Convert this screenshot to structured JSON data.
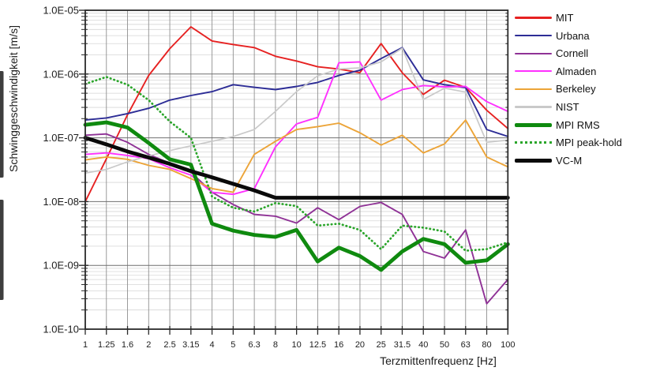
{
  "chart_data": {
    "type": "line",
    "title": "",
    "xlabel": "Terzmittenfrequenz [Hz]",
    "ylabel": "Schwinggeschwindigkeit [m/s]",
    "x_scale": "log-third-octave-bands",
    "y_scale": "log",
    "ylim": [
      1e-10,
      1e-05
    ],
    "grid": true,
    "legend_position": "right",
    "y_ticks": [
      "1.0E-05",
      "1.0E-06",
      "1.0E-07",
      "1.0E-08",
      "1.0E-09",
      "1.0E-10"
    ],
    "y_tick_values": [
      1e-05,
      1e-06,
      1e-07,
      1e-08,
      1e-09,
      1e-10
    ],
    "categories": [
      "1",
      "1.25",
      "1.6",
      "2",
      "2.5",
      "3.15",
      "4",
      "5",
      "6.3",
      "8",
      "10",
      "12.5",
      "16",
      "20",
      "25",
      "31.5",
      "40",
      "50",
      "63",
      "80",
      "100"
    ],
    "series": [
      {
        "name": "MIT",
        "color": "#e62121",
        "width": 1.9,
        "style": "solid",
        "values": [
          1e-08,
          4.7e-08,
          2.3e-07,
          9.5e-07,
          2.5e-06,
          5.5e-06,
          3.3e-06,
          2.9e-06,
          2.6e-06,
          1.9e-06,
          1.6e-06,
          1.3e-06,
          1.2e-06,
          1.05e-06,
          3e-06,
          1.05e-06,
          4.8e-07,
          8e-07,
          6.2e-07,
          2.7e-07,
          1.4e-07
        ]
      },
      {
        "name": "Urbana",
        "color": "#2d2d96",
        "width": 1.9,
        "style": "solid",
        "values": [
          1.9e-07,
          2.05e-07,
          2.4e-07,
          2.9e-07,
          3.9e-07,
          4.6e-07,
          5.3e-07,
          6.8e-07,
          6.2e-07,
          5.7e-07,
          6.4e-07,
          7.4e-07,
          9.5e-07,
          1.15e-06,
          1.75e-06,
          2.6e-06,
          8.1e-07,
          6.8e-07,
          6.1e-07,
          1.35e-07,
          1.05e-07
        ]
      },
      {
        "name": "Cornell",
        "color": "#8f3296",
        "width": 1.9,
        "style": "solid",
        "values": [
          1.1e-07,
          1.15e-07,
          8.5e-08,
          5.5e-08,
          4e-08,
          2.9e-08,
          1.4e-08,
          9e-09,
          6.3e-09,
          5.9e-09,
          4.6e-09,
          8e-09,
          5.2e-09,
          8.4e-09,
          9.7e-09,
          6.3e-09,
          1.65e-09,
          1.3e-09,
          3.6e-09,
          2.5e-10,
          6e-10
        ]
      },
      {
        "name": "Almaden",
        "color": "#ff30ff",
        "width": 1.9,
        "style": "solid",
        "values": [
          5.5e-08,
          5.8e-08,
          5.3e-08,
          4.7e-08,
          3.4e-08,
          2.6e-08,
          1.4e-08,
          1.3e-08,
          1.6e-08,
          7.2e-08,
          1.65e-07,
          2.1e-07,
          1.5e-06,
          1.55e-06,
          3.9e-07,
          5.7e-07,
          6.6e-07,
          6.3e-07,
          6.4e-07,
          3.7e-07,
          2.6e-07
        ]
      },
      {
        "name": "Berkeley",
        "color": "#eca438",
        "width": 1.9,
        "style": "solid",
        "values": [
          4.5e-08,
          5e-08,
          4.6e-08,
          3.7e-08,
          3.2e-08,
          2.3e-08,
          1.6e-08,
          1.4e-08,
          5.5e-08,
          8.8e-08,
          1.35e-07,
          1.5e-07,
          1.7e-07,
          1.2e-07,
          7.7e-08,
          1.1e-07,
          5.8e-08,
          8e-08,
          1.9e-07,
          5e-08,
          3.5e-08
        ]
      },
      {
        "name": "NIST",
        "color": "#c9c9c9",
        "width": 1.7,
        "style": "solid",
        "values": [
          2.8e-08,
          3.2e-08,
          4.2e-08,
          5.2e-08,
          6.3e-08,
          7.5e-08,
          8.8e-08,
          1.05e-07,
          1.35e-07,
          2.6e-07,
          5.3e-07,
          9.4e-07,
          1.2e-06,
          1.25e-06,
          1.55e-06,
          2.55e-06,
          4e-07,
          6e-07,
          5.2e-07,
          8.5e-08,
          9.2e-08
        ]
      },
      {
        "name": "MPI RMS",
        "color": "#0f8a0f",
        "width": 4.8,
        "style": "solid",
        "values": [
          1.6e-07,
          1.75e-07,
          1.45e-07,
          8.3e-08,
          4.6e-08,
          3.8e-08,
          4.5e-09,
          3.5e-09,
          3e-09,
          2.8e-09,
          3.6e-09,
          1.15e-09,
          1.9e-09,
          1.4e-09,
          8.5e-10,
          1.65e-09,
          2.6e-09,
          2.15e-09,
          1.1e-09,
          1.2e-09,
          2.15e-09
        ]
      },
      {
        "name": "MPI peak-hold",
        "color": "#2aa52a",
        "width": 2.7,
        "style": "dotted",
        "values": [
          7e-07,
          9e-07,
          6.8e-07,
          3.9e-07,
          1.8e-07,
          1e-07,
          1.2e-08,
          8e-09,
          7e-09,
          9.5e-09,
          8.5e-09,
          4.2e-09,
          4.5e-09,
          3.6e-09,
          1.8e-09,
          4.2e-09,
          3.9e-09,
          3.4e-09,
          1.7e-09,
          1.8e-09,
          2.3e-09
        ]
      },
      {
        "name": "VC-M",
        "color": "#0a0a0a",
        "width": 4.8,
        "style": "solid",
        "values": [
          1e-07,
          7.9e-08,
          6.1e-08,
          4.9e-08,
          3.9e-08,
          3e-08,
          2.4e-08,
          1.9e-08,
          1.5e-08,
          1.15e-08,
          1.15e-08,
          1.15e-08,
          1.15e-08,
          1.15e-08,
          1.15e-08,
          1.15e-08,
          1.15e-08,
          1.15e-08,
          1.15e-08,
          1.15e-08,
          1.15e-08
        ]
      }
    ],
    "colors": {
      "frame": "#2a2a2a",
      "grid_major": "#6f6f6f",
      "grid_minor": "#d6d6d6",
      "grid_vertical": "#909090",
      "tick": "#2a2a2a",
      "tick_label": "#1d1d1d"
    }
  },
  "decor": {
    "left_edge_fragment_color": "#3e3e3e"
  }
}
